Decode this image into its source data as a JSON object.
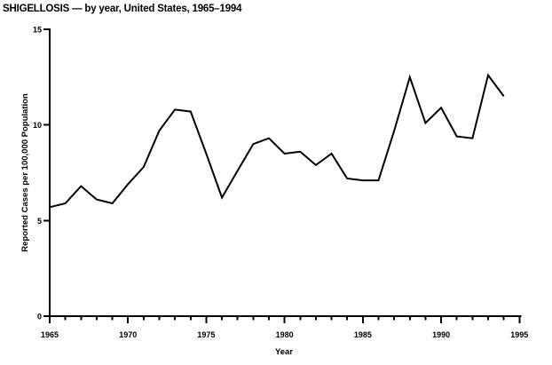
{
  "chart_data": {
    "type": "line",
    "title": "SHIGELLOSIS — by year, United States, 1965–1994",
    "xlabel": "Year",
    "ylabel": "Reported Cases per 100,000 Population",
    "x": [
      1965,
      1966,
      1967,
      1968,
      1969,
      1970,
      1971,
      1972,
      1973,
      1974,
      1975,
      1976,
      1977,
      1978,
      1979,
      1980,
      1981,
      1982,
      1983,
      1984,
      1985,
      1986,
      1987,
      1988,
      1989,
      1990,
      1991,
      1992,
      1993,
      1994
    ],
    "values": [
      5.7,
      5.9,
      6.8,
      6.1,
      5.9,
      6.9,
      7.8,
      9.7,
      10.8,
      10.7,
      8.5,
      6.2,
      7.6,
      9.0,
      9.3,
      8.5,
      8.6,
      7.9,
      8.5,
      7.2,
      7.1,
      7.1,
      9.7,
      12.5,
      10.1,
      10.9,
      9.4,
      9.3,
      12.6,
      11.5
    ],
    "xlim": [
      1965,
      1995
    ],
    "ylim": [
      0,
      15
    ],
    "yticks": [
      0,
      5,
      10,
      15
    ],
    "xticks_major": [
      1965,
      1970,
      1975,
      1980,
      1985,
      1990,
      1995
    ],
    "xtick_minor_interval": 1,
    "grid": false,
    "legend": null,
    "line_color": "#000000",
    "axis_color": "#000000",
    "background_color": "#ffffff"
  }
}
